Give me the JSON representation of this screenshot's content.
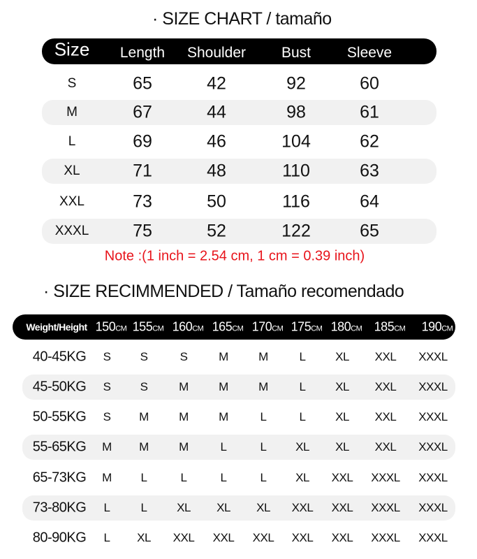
{
  "size_chart": {
    "title": "· SIZE CHART  /  tamaño",
    "headers": [
      "Size",
      "Length",
      "Shoulder",
      "Bust",
      "Sleeve"
    ],
    "rows": [
      [
        "S",
        "65",
        "42",
        "92",
        "60"
      ],
      [
        "M",
        "67",
        "44",
        "98",
        "61"
      ],
      [
        "L",
        "69",
        "46",
        "104",
        "62"
      ],
      [
        "XL",
        "71",
        "48",
        "110",
        "63"
      ],
      [
        "XXL",
        "73",
        "50",
        "116",
        "64"
      ],
      [
        "XXXL",
        "75",
        "52",
        "122",
        "65"
      ]
    ],
    "note": "Note :(1 inch = 2.54 cm, 1 cm = 0.39 inch)",
    "note_color": "#e8141b"
  },
  "size_recommended": {
    "title": "· SIZE RECIMMENDED / Tamaño recomendado",
    "corner_header": "Weight/Height",
    "unit": "CM",
    "heights": [
      "150",
      "155",
      "160",
      "165",
      "170",
      "175",
      "180",
      "185",
      "190"
    ],
    "rows": [
      {
        "weight": "40-45KG",
        "sizes": [
          "S",
          "S",
          "S",
          "M",
          "M",
          "L",
          "XL",
          "XXL",
          "XXXL"
        ]
      },
      {
        "weight": "45-50KG",
        "sizes": [
          "S",
          "S",
          "M",
          "M",
          "M",
          "L",
          "XL",
          "XXL",
          "XXXL"
        ]
      },
      {
        "weight": "50-55KG",
        "sizes": [
          "S",
          "M",
          "M",
          "M",
          "L",
          "L",
          "XL",
          "XXL",
          "XXXL"
        ]
      },
      {
        "weight": "55-65KG",
        "sizes": [
          "M",
          "M",
          "M",
          "L",
          "L",
          "XL",
          "XL",
          "XXL",
          "XXXL"
        ]
      },
      {
        "weight": "65-73KG",
        "sizes": [
          "M",
          "L",
          "L",
          "L",
          "L",
          "XL",
          "XXL",
          "XXXL",
          "XXXL"
        ]
      },
      {
        "weight": "73-80KG",
        "sizes": [
          "L",
          "L",
          "XL",
          "XL",
          "XL",
          "XXL",
          "XXL",
          "XXXL",
          "XXXL"
        ]
      },
      {
        "weight": "80-90KG",
        "sizes": [
          "L",
          "XL",
          "XXL",
          "XXL",
          "XXL",
          "XXL",
          "XXL",
          "XXXL",
          "XXXL"
        ]
      }
    ]
  }
}
